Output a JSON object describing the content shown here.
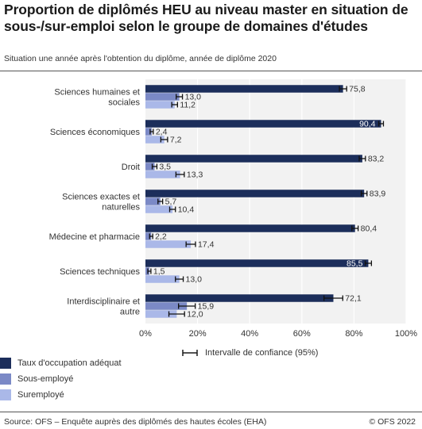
{
  "title": "Proportion de diplômés HEU au niveau master en situation de sous-/sur-emploi selon le groupe de domaines d'études",
  "subtitle": "Situation une année après l'obtention du diplôme, année de diplôme 2020",
  "ci_legend_label": "Intervalle de confiance (95%)",
  "source": "Source: OFS – Enquête auprès des diplômés des hautes écoles (EHA)",
  "copyright": "© OFS 2022",
  "colors": {
    "adequate": "#1c2e5b",
    "under": "#7b89c6",
    "over": "#aab8e8"
  },
  "chart_data": {
    "type": "bar",
    "orientation": "horizontal",
    "categories": [
      [
        "Sciences humaines et",
        "sociales"
      ],
      [
        "Sciences économiques"
      ],
      [
        "Droit"
      ],
      [
        "Sciences exactes et",
        "naturelles"
      ],
      [
        "Médecine et pharmacie"
      ],
      [
        "Sciences techniques"
      ],
      [
        "Interdisciplinaire et",
        "autre"
      ]
    ],
    "series": [
      {
        "name": "Taux d'occupation adéquat",
        "values": [
          75.8,
          90.4,
          83.2,
          83.9,
          80.4,
          85.5,
          72.1
        ],
        "ci": [
          [
            74.4,
            77.2
          ],
          [
            89.5,
            91.3
          ],
          [
            82.0,
            84.4
          ],
          [
            82.8,
            85.0
          ],
          [
            79.2,
            81.6
          ],
          [
            84.3,
            86.7
          ],
          [
            68.5,
            75.7
          ]
        ]
      },
      {
        "name": "Sous-employé",
        "values": [
          13.0,
          2.4,
          3.5,
          5.7,
          2.2,
          1.5,
          15.9
        ],
        "ci": [
          [
            11.8,
            14.2
          ],
          [
            1.8,
            3.0
          ],
          [
            2.6,
            4.4
          ],
          [
            4.8,
            6.6
          ],
          [
            1.6,
            2.8
          ],
          [
            0.9,
            2.1
          ],
          [
            12.7,
            19.1
          ]
        ]
      },
      {
        "name": "Suremployé",
        "values": [
          11.2,
          7.2,
          13.3,
          10.4,
          17.4,
          13.0,
          12.0
        ],
        "ci": [
          [
            10.1,
            12.3
          ],
          [
            5.9,
            8.5
          ],
          [
            11.7,
            14.9
          ],
          [
            9.3,
            11.5
          ],
          [
            15.6,
            19.2
          ],
          [
            11.5,
            14.5
          ],
          [
            9.0,
            15.0
          ]
        ]
      }
    ],
    "value_labels": [
      [
        "75,8",
        "90,4",
        "83,2",
        "83,9",
        "80,4",
        "85,5",
        "72,1"
      ],
      [
        "13,0",
        "2,4",
        "3,5",
        "5,7",
        "2,2",
        "1,5",
        "15,9"
      ],
      [
        "11,2",
        "7,2",
        "13,3",
        "10,4",
        "17,4",
        "13,0",
        "12,0"
      ]
    ],
    "xlim": [
      0,
      100
    ],
    "xticks": [
      "0%",
      "20%",
      "40%",
      "60%",
      "80%",
      "100%"
    ],
    "grid": true,
    "legend_position": "bottom-left"
  }
}
